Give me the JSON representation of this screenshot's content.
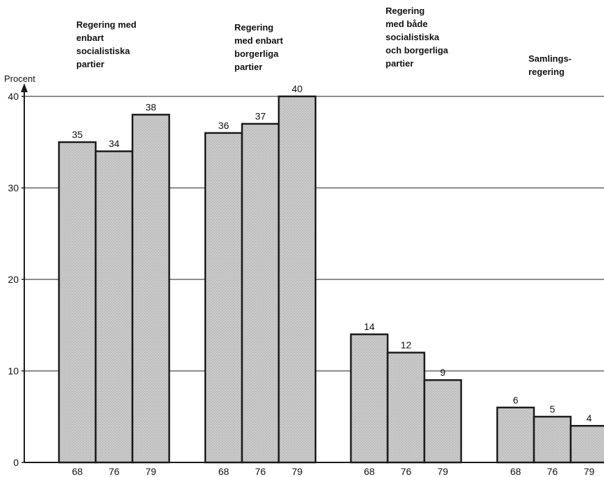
{
  "chart_data": {
    "type": "bar",
    "ylabel": "Procent",
    "ylim": [
      0,
      40
    ],
    "yticks": [
      0,
      10,
      20,
      30,
      40
    ],
    "grid": true,
    "groups": [
      {
        "label_lines": [
          "Regering med",
          "enbart",
          "socialistiska",
          "partier"
        ],
        "bars": [
          {
            "x": "68",
            "value": 35
          },
          {
            "x": "76",
            "value": 34
          },
          {
            "x": "79",
            "value": 38
          }
        ]
      },
      {
        "label_lines": [
          "Regering",
          "med enbart",
          "borgerliga",
          "partier"
        ],
        "bars": [
          {
            "x": "68",
            "value": 36
          },
          {
            "x": "76",
            "value": 37
          },
          {
            "x": "79",
            "value": 40
          }
        ]
      },
      {
        "label_lines": [
          "Regering",
          "med både",
          "socialistiska",
          "och borgerliga",
          "partier"
        ],
        "bars": [
          {
            "x": "68",
            "value": 14
          },
          {
            "x": "76",
            "value": 12
          },
          {
            "x": "79",
            "value": 9
          }
        ]
      },
      {
        "label_lines": [
          "Samlings-",
          "regering"
        ],
        "bars": [
          {
            "x": "68",
            "value": 6
          },
          {
            "x": "76",
            "value": 5
          },
          {
            "x": "79",
            "value": 4
          }
        ]
      }
    ],
    "colors": {
      "bar_fill": "#c8c8c8",
      "bar_stroke": "#1a1a1a",
      "grid": "#1a1a1a"
    }
  }
}
